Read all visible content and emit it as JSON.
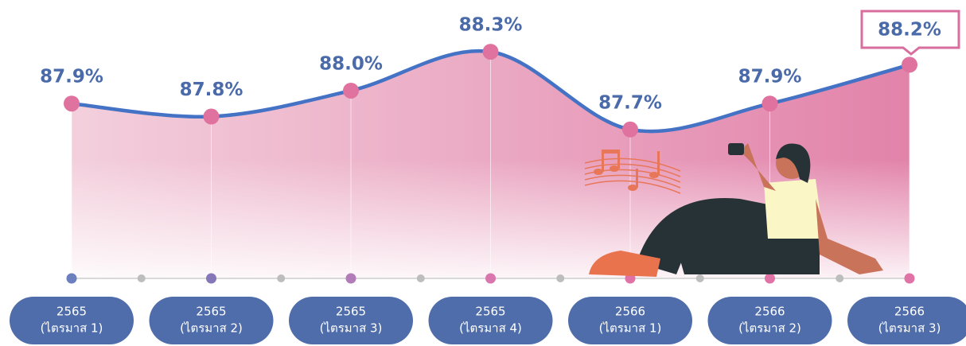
{
  "chart_data": {
    "type": "line",
    "categories": [
      [
        "2565",
        "(ไตรมาส 1)"
      ],
      [
        "2565",
        "(ไตรมาส 2)"
      ],
      [
        "2565",
        "(ไตรมาส 3)"
      ],
      [
        "2565",
        "(ไตรมาส 4)"
      ],
      [
        "2566",
        "(ไตรมาส 1)"
      ],
      [
        "2566",
        "(ไตรมาส 2)"
      ],
      [
        "2566",
        "(ไตรมาส 3)"
      ]
    ],
    "values": [
      87.9,
      87.8,
      88.0,
      88.3,
      87.7,
      87.9,
      88.2
    ],
    "value_labels": [
      "87.9%",
      "87.8%",
      "88.0%",
      "88.3%",
      "87.7%",
      "87.9%",
      "88.2%"
    ],
    "color": "#4472c4",
    "marker_color": "#e0729f",
    "ylim": [
      86.55,
      88.7
    ]
  }
}
